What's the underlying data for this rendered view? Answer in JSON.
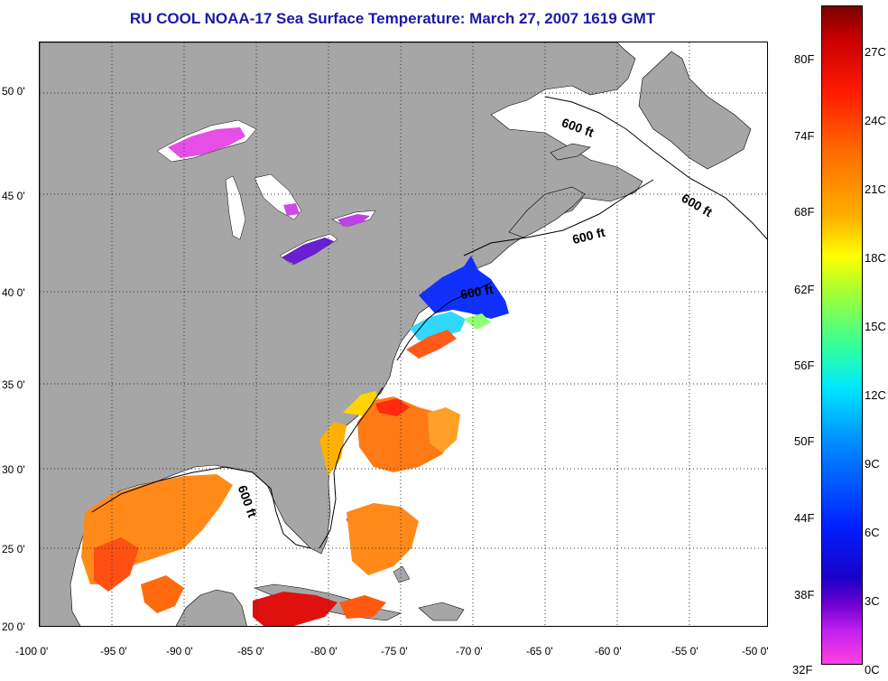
{
  "title": "RU COOL  NOAA-17  Sea Surface Temperature:  March 27, 2007 1619 GMT",
  "map": {
    "lon_labels": [
      "-100 0'",
      "-95 0'",
      "-90 0'",
      "-85 0'",
      "-80 0'",
      "-75 0'",
      "-70 0'",
      "-65 0'",
      "-60 0'",
      "-55 0'",
      "-50 0'"
    ],
    "lat_labels": [
      "50 0'",
      "45 0'",
      "40 0'",
      "35 0'",
      "30 0'",
      "25 0'",
      "20 0'"
    ],
    "contour_labels": [
      "600 ft",
      "600 ft",
      "600 ft",
      "600 ft",
      "600 ft"
    ],
    "colors": {
      "land": "#a6a6a6",
      "ocean": "#ffffff",
      "grid": "#555555"
    }
  },
  "colorbar": {
    "fahrenheit_labels": [
      "80F",
      "74F",
      "68F",
      "62F",
      "56F",
      "50F",
      "44F",
      "38F",
      "32F"
    ],
    "celsius_labels": [
      "27C",
      "24C",
      "21C",
      "18C",
      "15C",
      "12C",
      "9C",
      "6C",
      "3C",
      "0C"
    ]
  }
}
